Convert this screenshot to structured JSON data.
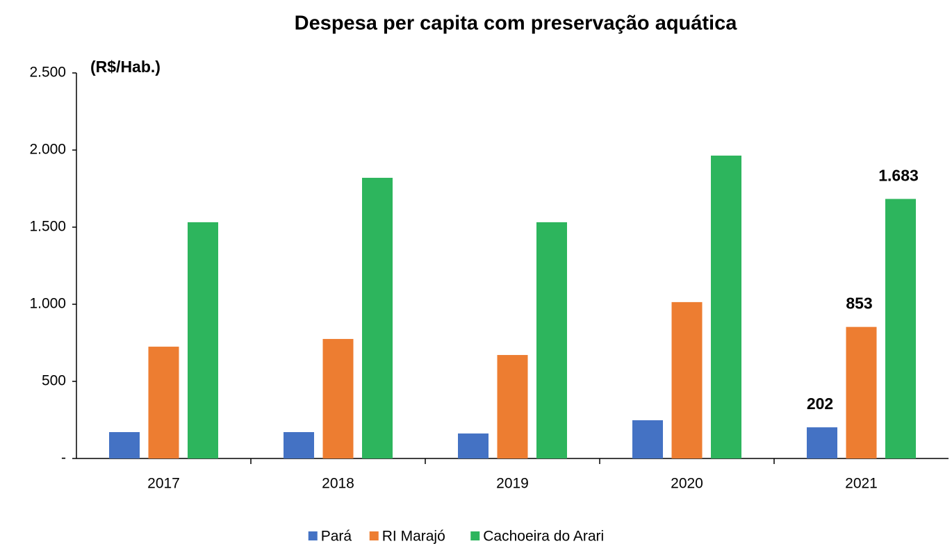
{
  "chart_data": {
    "type": "bar",
    "title": "Despesa per capita com preservação aquática",
    "ylabel": "(R$/Hab.)",
    "categories": [
      "2017",
      "2018",
      "2019",
      "2020",
      "2021"
    ],
    "series": [
      {
        "name": "Pará",
        "color": "#4472c4",
        "values": [
          171,
          171,
          162,
          248,
          202
        ],
        "value_labels": [
          null,
          null,
          null,
          null,
          "202"
        ]
      },
      {
        "name": "RI Marajó",
        "color": "#ed7d31",
        "values": [
          725,
          775,
          671,
          1014,
          853
        ],
        "value_labels": [
          null,
          null,
          null,
          null,
          "853"
        ]
      },
      {
        "name": "Cachoeira do Arari",
        "color": "#2db55d",
        "values": [
          1532,
          1820,
          1532,
          1964,
          1683
        ],
        "value_labels": [
          null,
          null,
          null,
          null,
          "1.683"
        ]
      }
    ],
    "ylim": [
      0,
      2500
    ],
    "yticks": [
      {
        "value": 0,
        "label": "-"
      },
      500,
      {
        "value": 1000,
        "label": "1.000"
      },
      {
        "value": 1500,
        "label": "1.500"
      },
      {
        "value": 2000,
        "label": "2.000"
      },
      {
        "value": 2500,
        "label": "2.500"
      }
    ],
    "legend": "bottom"
  }
}
